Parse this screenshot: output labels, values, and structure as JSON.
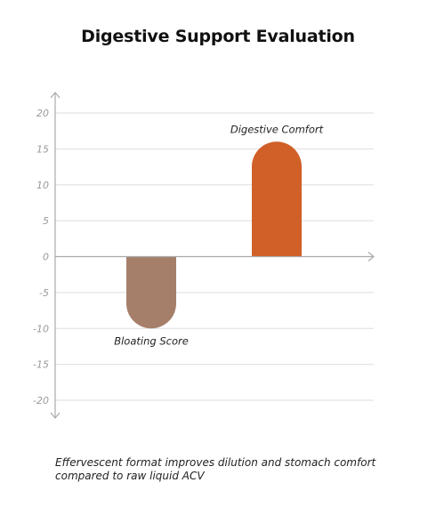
{
  "chart_data": {
    "type": "bar",
    "title": "Digestive Support Evaluation",
    "xlabel": "",
    "ylabel": "",
    "categories": [
      "Bloating Score",
      "Digestive Comfort"
    ],
    "values": [
      -10,
      16
    ],
    "colors": [
      "#a67f6a",
      "#d05f28"
    ],
    "ylim": [
      -20,
      20
    ],
    "yticks": [
      20,
      15,
      10,
      5,
      0,
      -5,
      -10,
      -15,
      -20
    ],
    "ytick_labels": [
      "20",
      "15",
      "10",
      "5",
      "0",
      "-5",
      "-10",
      "-15",
      "-20"
    ],
    "grid": true,
    "legend": "none",
    "bar_shape": "rounded-end",
    "label_placement": "at bar end"
  },
  "footnote": "Effervescent format improves dilution and stomach comfort compared to raw liquid ACV"
}
